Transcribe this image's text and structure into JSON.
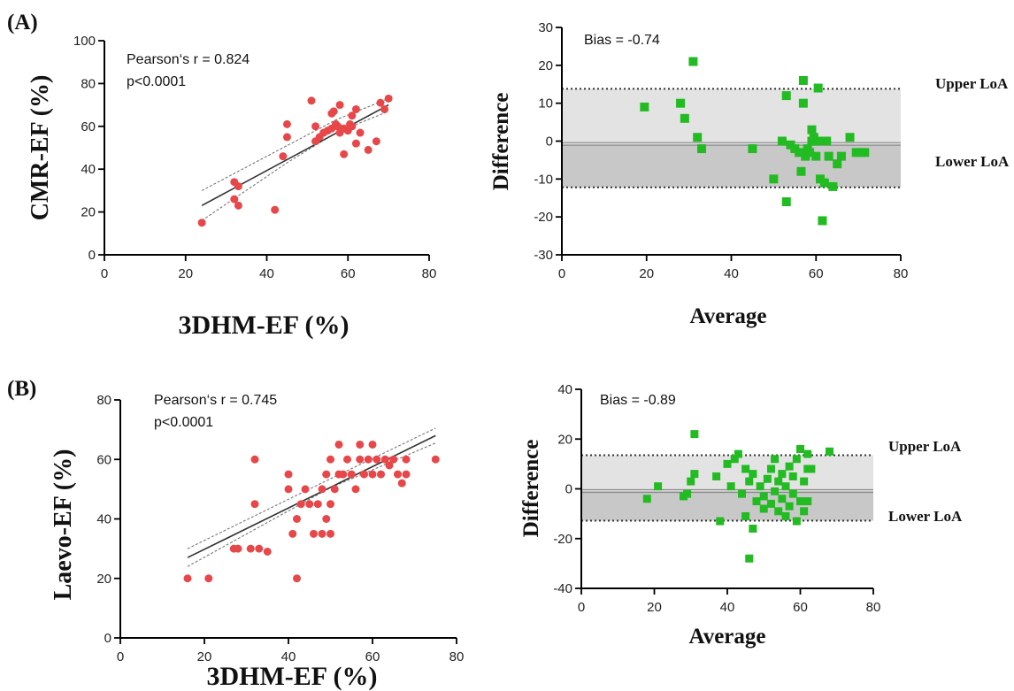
{
  "figure": {
    "panel_labels": [
      "(A)",
      "(B)"
    ]
  },
  "chart_data": [
    {
      "id": "A_scatter",
      "type": "scatter",
      "title": "",
      "xlabel": "3DHM-EF (%)",
      "ylabel": "CMR-EF (%)",
      "xlim": [
        0,
        80
      ],
      "ylim": [
        0,
        100
      ],
      "xticks": [
        0,
        20,
        40,
        60,
        80
      ],
      "yticks": [
        0,
        20,
        40,
        60,
        80,
        100
      ],
      "annotations": [
        "Pearson‘s r = 0.824",
        "p<0.0001"
      ],
      "point_color": "#e8474a",
      "regression": {
        "x": [
          24,
          70
        ],
        "y": [
          23,
          70
        ]
      },
      "ci_upper": {
        "x": [
          24,
          45,
          57,
          70
        ],
        "y": [
          30,
          51,
          63,
          73
        ]
      },
      "ci_lower": {
        "x": [
          24,
          45,
          57,
          70
        ],
        "y": [
          16,
          43,
          57,
          67
        ]
      },
      "points": [
        {
          "x": 24,
          "y": 15
        },
        {
          "x": 32,
          "y": 34
        },
        {
          "x": 32,
          "y": 26
        },
        {
          "x": 33,
          "y": 23
        },
        {
          "x": 33,
          "y": 32
        },
        {
          "x": 42,
          "y": 21
        },
        {
          "x": 44,
          "y": 46
        },
        {
          "x": 45,
          "y": 55
        },
        {
          "x": 45,
          "y": 61
        },
        {
          "x": 51,
          "y": 72
        },
        {
          "x": 52,
          "y": 53
        },
        {
          "x": 52,
          "y": 60
        },
        {
          "x": 53,
          "y": 55
        },
        {
          "x": 54,
          "y": 57
        },
        {
          "x": 55,
          "y": 58
        },
        {
          "x": 56,
          "y": 59
        },
        {
          "x": 56,
          "y": 66
        },
        {
          "x": 56.5,
          "y": 67
        },
        {
          "x": 57,
          "y": 61
        },
        {
          "x": 57.5,
          "y": 60
        },
        {
          "x": 58,
          "y": 70
        },
        {
          "x": 58,
          "y": 57
        },
        {
          "x": 59,
          "y": 47
        },
        {
          "x": 59,
          "y": 59
        },
        {
          "x": 60,
          "y": 58
        },
        {
          "x": 60.5,
          "y": 61
        },
        {
          "x": 61,
          "y": 60
        },
        {
          "x": 61,
          "y": 65
        },
        {
          "x": 62,
          "y": 68
        },
        {
          "x": 62,
          "y": 52
        },
        {
          "x": 63,
          "y": 57
        },
        {
          "x": 65,
          "y": 49
        },
        {
          "x": 67,
          "y": 53
        },
        {
          "x": 68,
          "y": 71
        },
        {
          "x": 69,
          "y": 68
        },
        {
          "x": 70,
          "y": 73
        }
      ]
    },
    {
      "id": "A_bland_altman",
      "type": "scatter",
      "title": "",
      "xlabel": "Average",
      "ylabel": "Difference",
      "xlim": [
        0,
        80
      ],
      "ylim": [
        -30,
        30
      ],
      "xticks": [
        0,
        20,
        40,
        60,
        80
      ],
      "yticks": [
        -30,
        -20,
        -10,
        0,
        10,
        20,
        30
      ],
      "annotations": [
        "Bias = -0.74"
      ],
      "bias": -0.74,
      "upper_loa": 13.8,
      "lower_loa": -12.2,
      "line_labels": [
        "Upper LoA",
        "Lower LoA"
      ],
      "point_color": "#22bb22",
      "points": [
        {
          "x": 19.5,
          "y": 9
        },
        {
          "x": 28,
          "y": 10
        },
        {
          "x": 29,
          "y": 6
        },
        {
          "x": 31,
          "y": 21
        },
        {
          "x": 32,
          "y": 1
        },
        {
          "x": 33,
          "y": -2
        },
        {
          "x": 45,
          "y": -2
        },
        {
          "x": 50,
          "y": -10
        },
        {
          "x": 52,
          "y": 0
        },
        {
          "x": 53,
          "y": 12
        },
        {
          "x": 53,
          "y": -16
        },
        {
          "x": 54,
          "y": -1
        },
        {
          "x": 55,
          "y": -2
        },
        {
          "x": 56,
          "y": -3
        },
        {
          "x": 56.5,
          "y": -8
        },
        {
          "x": 57,
          "y": 16
        },
        {
          "x": 57,
          "y": 10
        },
        {
          "x": 57.5,
          "y": -4
        },
        {
          "x": 58,
          "y": -2
        },
        {
          "x": 58.5,
          "y": -3
        },
        {
          "x": 59,
          "y": 0
        },
        {
          "x": 59,
          "y": 3
        },
        {
          "x": 59.5,
          "y": 1
        },
        {
          "x": 60,
          "y": -4
        },
        {
          "x": 60.5,
          "y": 14
        },
        {
          "x": 61,
          "y": 0
        },
        {
          "x": 61,
          "y": -10
        },
        {
          "x": 61.5,
          "y": -21
        },
        {
          "x": 62,
          "y": -11
        },
        {
          "x": 62.5,
          "y": 0
        },
        {
          "x": 63,
          "y": -4
        },
        {
          "x": 64,
          "y": -12
        },
        {
          "x": 65,
          "y": -6
        },
        {
          "x": 66,
          "y": -4
        },
        {
          "x": 68,
          "y": 1
        },
        {
          "x": 69.5,
          "y": -3
        },
        {
          "x": 70.5,
          "y": -3
        },
        {
          "x": 71.5,
          "y": -3
        }
      ]
    },
    {
      "id": "B_scatter",
      "type": "scatter",
      "title": "",
      "xlabel": "3DHM-EF (%)",
      "ylabel": "Laevo-EF (%)",
      "xlim": [
        0,
        80
      ],
      "ylim": [
        0,
        80
      ],
      "xticks": [
        0,
        20,
        40,
        60,
        80
      ],
      "yticks": [
        0,
        20,
        40,
        60,
        80
      ],
      "annotations": [
        "Pearson‘s r = 0.745",
        "p<0.0001"
      ],
      "point_color": "#e8474a",
      "regression": {
        "x": [
          16,
          75
        ],
        "y": [
          27,
          68
        ]
      },
      "ci_upper": {
        "x": [
          16,
          50,
          75
        ],
        "y": [
          30,
          53.5,
          70.5
        ]
      },
      "ci_lower": {
        "x": [
          16,
          50,
          75
        ],
        "y": [
          24,
          50.5,
          65.5
        ]
      },
      "points": [
        {
          "x": 16,
          "y": 20
        },
        {
          "x": 21,
          "y": 20
        },
        {
          "x": 27,
          "y": 30
        },
        {
          "x": 28,
          "y": 30
        },
        {
          "x": 31,
          "y": 30
        },
        {
          "x": 32,
          "y": 45
        },
        {
          "x": 32,
          "y": 60
        },
        {
          "x": 33,
          "y": 30
        },
        {
          "x": 35,
          "y": 29
        },
        {
          "x": 40,
          "y": 55
        },
        {
          "x": 40,
          "y": 50
        },
        {
          "x": 41,
          "y": 35
        },
        {
          "x": 42,
          "y": 40
        },
        {
          "x": 42,
          "y": 20
        },
        {
          "x": 43,
          "y": 45
        },
        {
          "x": 44,
          "y": 50
        },
        {
          "x": 45,
          "y": 45
        },
        {
          "x": 46,
          "y": 35
        },
        {
          "x": 47,
          "y": 45
        },
        {
          "x": 48,
          "y": 35
        },
        {
          "x": 48,
          "y": 50
        },
        {
          "x": 49,
          "y": 40
        },
        {
          "x": 49,
          "y": 55
        },
        {
          "x": 50,
          "y": 35
        },
        {
          "x": 50,
          "y": 45
        },
        {
          "x": 50,
          "y": 60
        },
        {
          "x": 51,
          "y": 50
        },
        {
          "x": 52,
          "y": 55
        },
        {
          "x": 52,
          "y": 65
        },
        {
          "x": 53,
          "y": 55
        },
        {
          "x": 54,
          "y": 60
        },
        {
          "x": 55,
          "y": 55
        },
        {
          "x": 56,
          "y": 50
        },
        {
          "x": 57,
          "y": 60
        },
        {
          "x": 57,
          "y": 65
        },
        {
          "x": 58,
          "y": 55
        },
        {
          "x": 59,
          "y": 60
        },
        {
          "x": 60,
          "y": 65
        },
        {
          "x": 60,
          "y": 55
        },
        {
          "x": 61,
          "y": 60
        },
        {
          "x": 62,
          "y": 55
        },
        {
          "x": 63,
          "y": 60
        },
        {
          "x": 64,
          "y": 58
        },
        {
          "x": 65,
          "y": 60
        },
        {
          "x": 66,
          "y": 55
        },
        {
          "x": 67,
          "y": 52
        },
        {
          "x": 68,
          "y": 60
        },
        {
          "x": 68,
          "y": 55
        },
        {
          "x": 75,
          "y": 60
        }
      ]
    },
    {
      "id": "B_bland_altman",
      "type": "scatter",
      "title": "",
      "xlabel": "Average",
      "ylabel": "Difference",
      "xlim": [
        0,
        80
      ],
      "ylim": [
        -40,
        40
      ],
      "xticks": [
        0,
        20,
        40,
        60,
        80
      ],
      "yticks": [
        -40,
        -20,
        0,
        20,
        40
      ],
      "annotations": [
        "Bias = -0.89"
      ],
      "bias": -0.89,
      "upper_loa": 13.5,
      "lower_loa": -12.8,
      "line_labels": [
        "Upper LoA",
        "Lower LoA"
      ],
      "point_color": "#22bb22",
      "points": [
        {
          "x": 18,
          "y": -4
        },
        {
          "x": 21,
          "y": 1
        },
        {
          "x": 28,
          "y": -3
        },
        {
          "x": 29,
          "y": -2
        },
        {
          "x": 30,
          "y": 3
        },
        {
          "x": 31,
          "y": 22
        },
        {
          "x": 31,
          "y": 6
        },
        {
          "x": 37,
          "y": 5
        },
        {
          "x": 38,
          "y": -13
        },
        {
          "x": 40,
          "y": 10
        },
        {
          "x": 41,
          "y": 1
        },
        {
          "x": 42,
          "y": 12
        },
        {
          "x": 43,
          "y": 14
        },
        {
          "x": 44,
          "y": -2
        },
        {
          "x": 45,
          "y": 8
        },
        {
          "x": 45,
          "y": -11
        },
        {
          "x": 46,
          "y": 3
        },
        {
          "x": 46,
          "y": -28
        },
        {
          "x": 47,
          "y": -16
        },
        {
          "x": 47,
          "y": 6
        },
        {
          "x": 48,
          "y": -5
        },
        {
          "x": 49,
          "y": 1
        },
        {
          "x": 50,
          "y": -3
        },
        {
          "x": 50,
          "y": -8
        },
        {
          "x": 51,
          "y": 4
        },
        {
          "x": 52,
          "y": -6
        },
        {
          "x": 52,
          "y": 8
        },
        {
          "x": 53,
          "y": -1
        },
        {
          "x": 53,
          "y": 12
        },
        {
          "x": 54,
          "y": -9
        },
        {
          "x": 54,
          "y": 3
        },
        {
          "x": 55,
          "y": -4
        },
        {
          "x": 55,
          "y": 6
        },
        {
          "x": 56,
          "y": -11
        },
        {
          "x": 56,
          "y": 1
        },
        {
          "x": 57,
          "y": -7
        },
        {
          "x": 57,
          "y": 9
        },
        {
          "x": 58,
          "y": -2
        },
        {
          "x": 58,
          "y": 5
        },
        {
          "x": 59,
          "y": -13
        },
        {
          "x": 59,
          "y": 12
        },
        {
          "x": 60,
          "y": -5
        },
        {
          "x": 60,
          "y": 16
        },
        {
          "x": 61,
          "y": 3
        },
        {
          "x": 61,
          "y": -9
        },
        {
          "x": 62,
          "y": 8
        },
        {
          "x": 62,
          "y": -5
        },
        {
          "x": 63,
          "y": 8
        },
        {
          "x": 68,
          "y": 15
        },
        {
          "x": 62,
          "y": 14
        }
      ]
    }
  ]
}
